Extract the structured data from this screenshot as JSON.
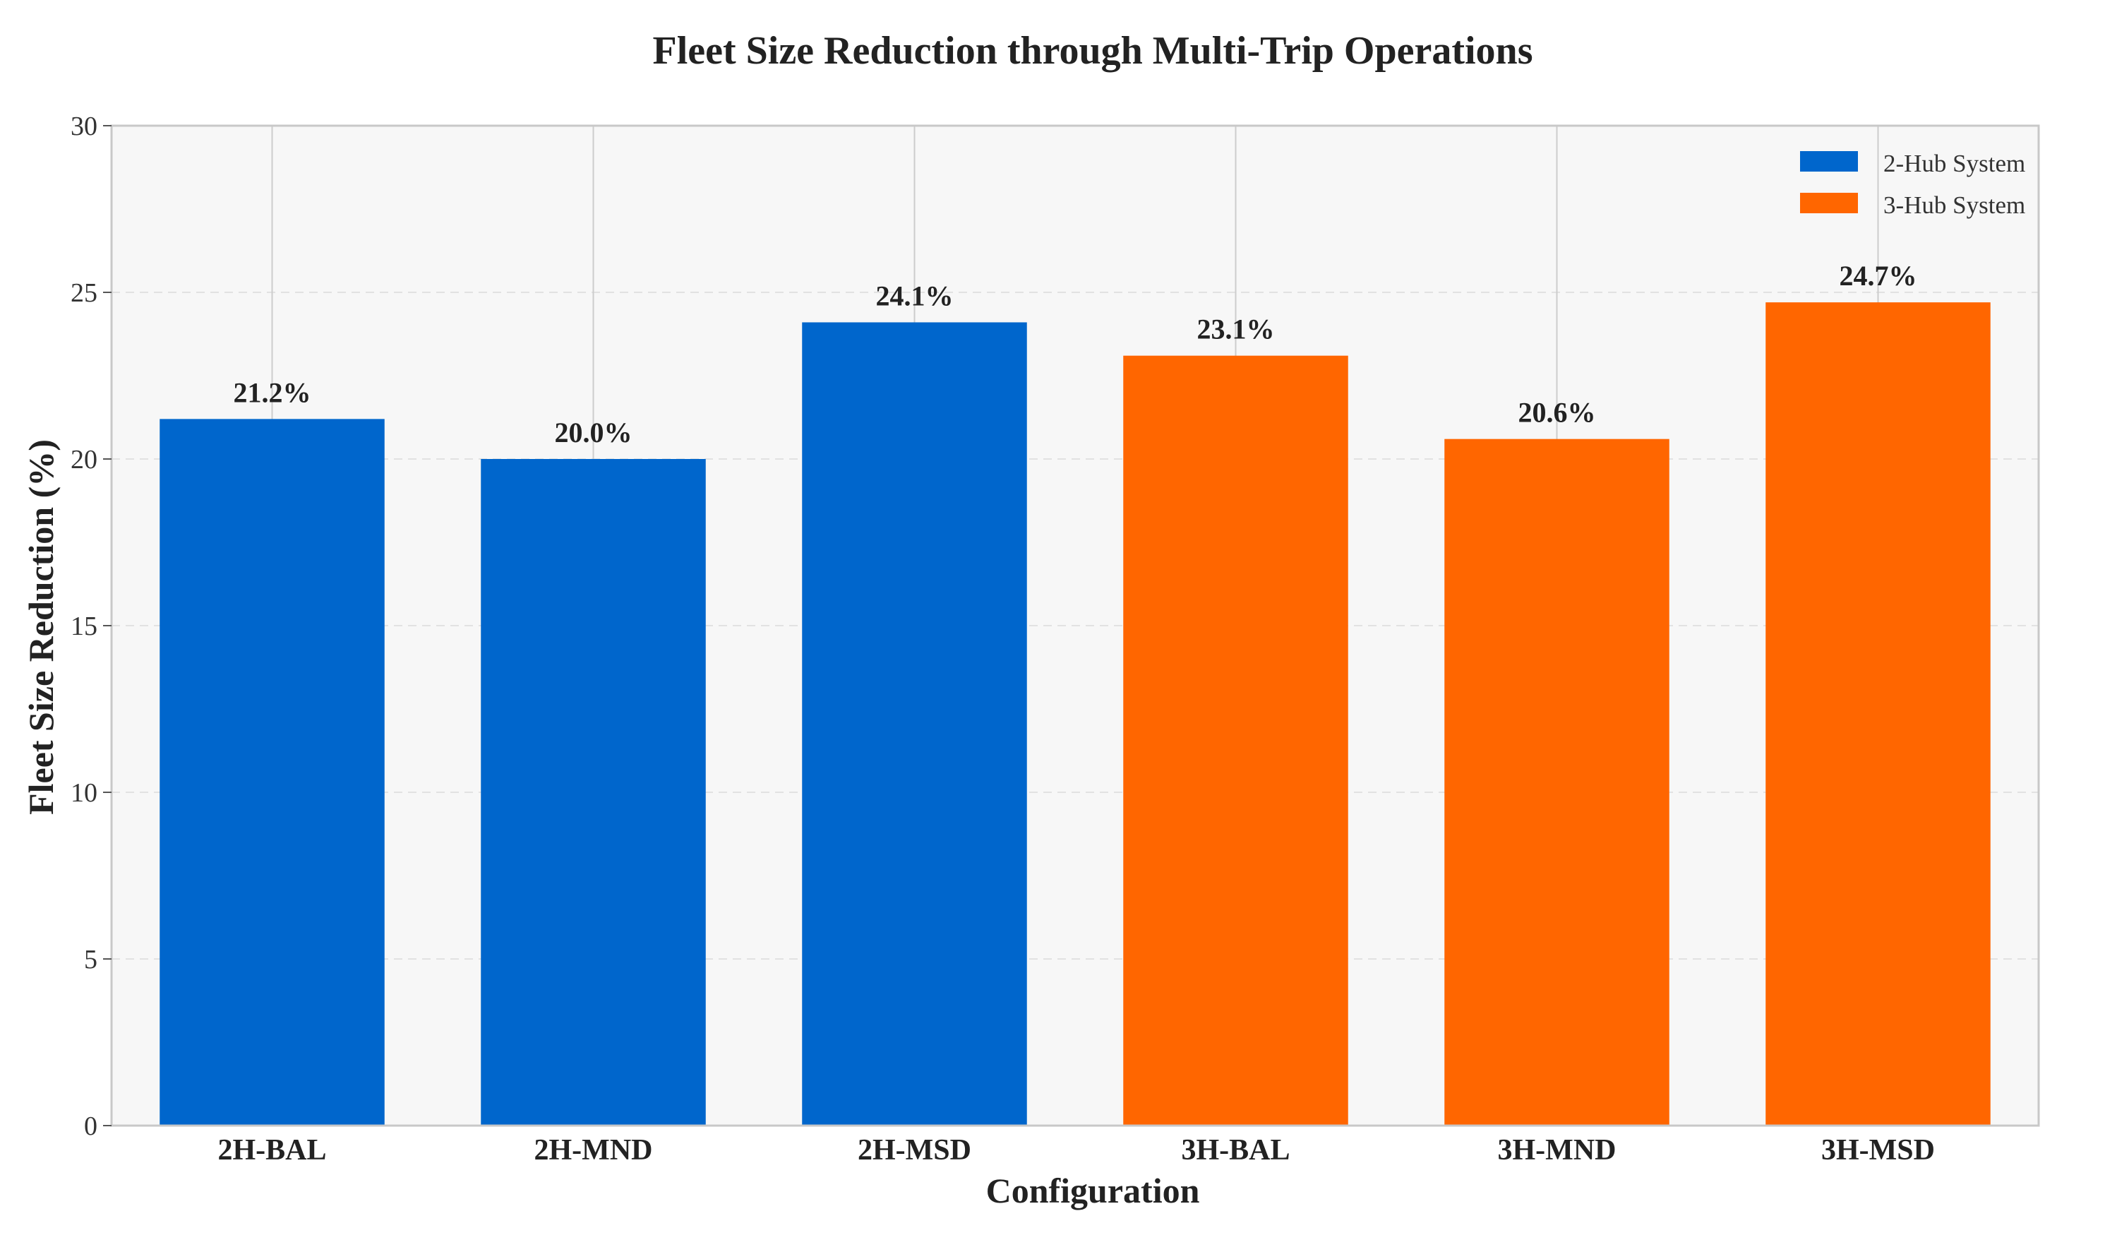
{
  "chart_data": {
    "type": "bar",
    "title": "Fleet Size Reduction through Multi-Trip Operations",
    "xlabel": "Configuration",
    "ylabel": "Fleet Size Reduction (%)",
    "ylim": [
      0,
      30
    ],
    "yticks": [
      "0",
      "5",
      "10",
      "15",
      "20",
      "25",
      "30"
    ],
    "grid": true,
    "legend_position": "top-right",
    "categories": [
      "2H-BAL",
      "2H-MND",
      "2H-MSD",
      "3H-BAL",
      "3H-MND",
      "3H-MSD"
    ],
    "values": [
      21.2,
      20.0,
      24.1,
      23.1,
      20.6,
      24.7
    ],
    "data_labels": [
      "21.2%",
      "20.0%",
      "24.1%",
      "23.1%",
      "20.6%",
      "24.7%"
    ],
    "bar_series": [
      0,
      0,
      0,
      1,
      1,
      1
    ],
    "series": [
      {
        "name": "2-Hub System",
        "color": "#0066CC"
      },
      {
        "name": "3-Hub System",
        "color": "#FF6600"
      }
    ]
  }
}
